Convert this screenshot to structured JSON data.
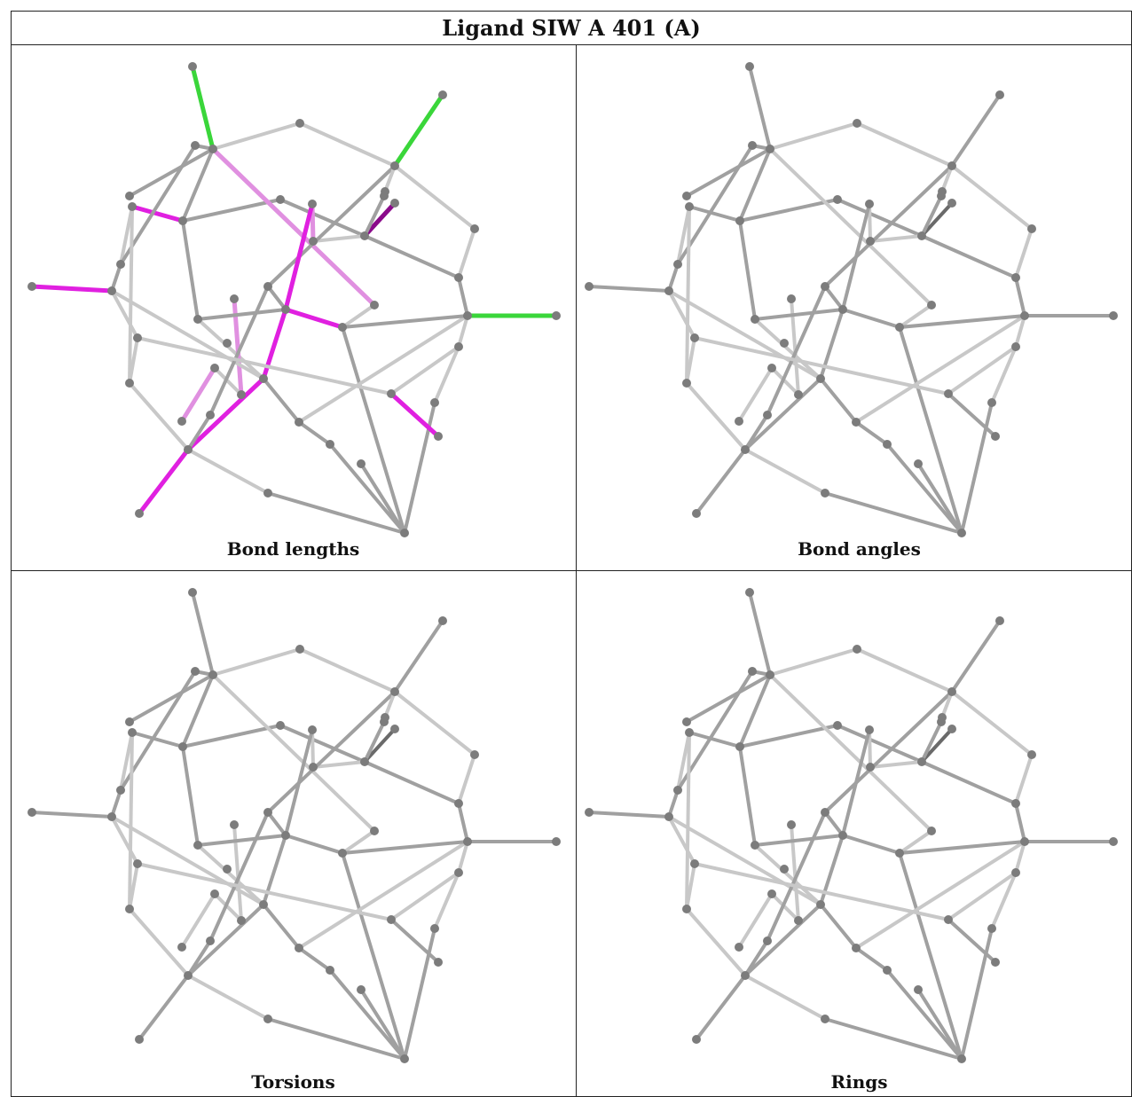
{
  "title": "Ligand SIW A 401 (A)",
  "panels": [
    {
      "caption": "Bond lengths",
      "highlight": "lengths"
    },
    {
      "caption": "Bond angles",
      "highlight": "none"
    },
    {
      "caption": "Torsions",
      "highlight": "none"
    },
    {
      "caption": "Rings",
      "highlight": "none"
    }
  ],
  "colors": {
    "atom": "#7c7c7c",
    "bond_light": "#c8c8c8",
    "bond_mid": "#a0a0a0",
    "bond_dark": "#6a6a6a",
    "outlier_green": "#3ad63a",
    "outlier_magenta": "#e020e0",
    "outlier_dark_magenta": "#8a0a8a",
    "outlier_light_magenta": "#e090e0",
    "border": "#222222"
  }
}
